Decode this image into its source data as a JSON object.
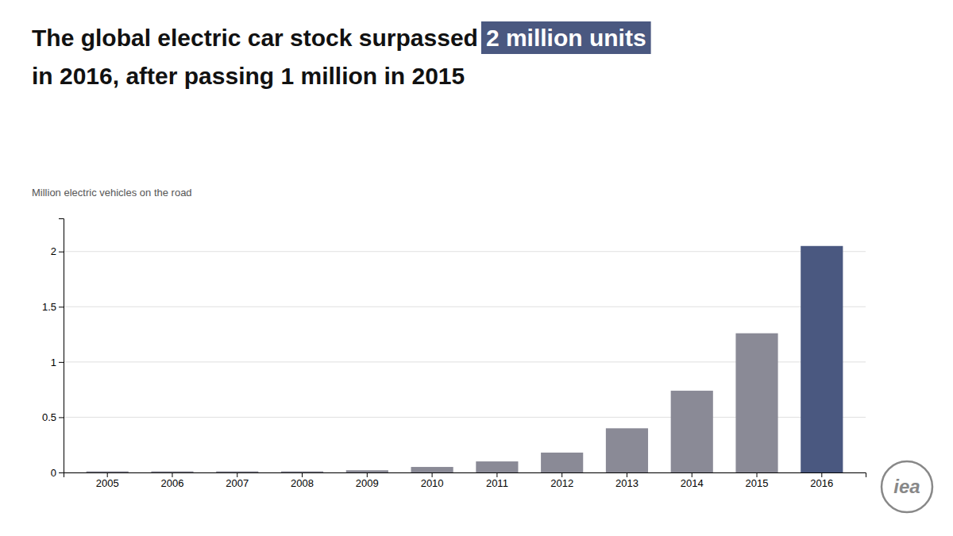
{
  "chart_data": {
    "type": "bar",
    "title": "The global electric car stock surpassed",
    "subtitle": "in 2016, after passing 1 million in 2015",
    "annotations": [
      {
        "text": "2 million units",
        "color": "#4a5880"
      },
      {
        "text": "iea"
      }
    ],
    "ylabel": "Million electric vehicles on the road",
    "categories": [
      "2005",
      "2006",
      "2007",
      "2008",
      "2009",
      "2010",
      "2011",
      "2012",
      "2013",
      "2014",
      "2015",
      "2016"
    ],
    "values": [
      0.01,
      0.01,
      0.01,
      0.01,
      0.02,
      0.05,
      0.1,
      0.18,
      0.4,
      0.74,
      1.26,
      2.05
    ],
    "colors": [
      "#8a8a96",
      "#8a8a96",
      "#8a8a96",
      "#8a8a96",
      "#8a8a96",
      "#8a8a96",
      "#8a8a96",
      "#8a8a96",
      "#8a8a96",
      "#8a8a96",
      "#8a8a96",
      "#4a5880"
    ],
    "ylim": [
      0,
      2.3
    ],
    "yticks": [
      0,
      0.5,
      1,
      1.5,
      2
    ],
    "grid": true
  }
}
